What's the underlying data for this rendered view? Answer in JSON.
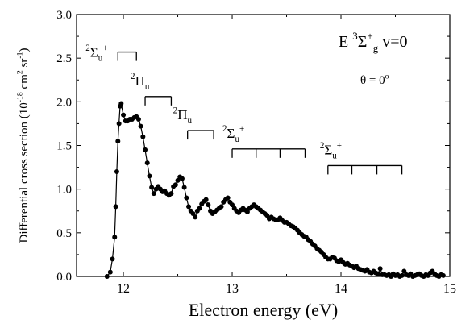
{
  "chart_data": {
    "type": "scatter",
    "x_label": "Electron energy (eV)",
    "y_label": [
      {
        "text": "Differential cross section (10",
        "pos": "base"
      },
      {
        "text": "-18",
        "pos": "sup"
      },
      {
        "text": " cm",
        "pos": "base"
      },
      {
        "text": "2",
        "pos": "sup"
      },
      {
        "text": " sr",
        "pos": "base"
      },
      {
        "text": "-1",
        "pos": "sup"
      },
      {
        "text": ")",
        "pos": "base"
      }
    ],
    "annotations": [
      [
        {
          "text": "E ",
          "pos": "base"
        },
        {
          "text": "3",
          "pos": "sup"
        },
        {
          "text": "Σ",
          "pos": "base"
        },
        {
          "text": "+",
          "pos": "sup"
        },
        {
          "text": "g",
          "pos": "sub"
        },
        {
          "text": "  v=0",
          "pos": "base"
        }
      ],
      [
        {
          "text": "θ = 0",
          "pos": "base"
        },
        {
          "text": "o",
          "pos": "sup"
        }
      ]
    ],
    "progressions": [
      {
        "label": [
          {
            "text": "2",
            "pos": "sup"
          },
          {
            "text": "Σ",
            "pos": "base"
          },
          {
            "text": "u",
            "pos": "sub"
          },
          {
            "text": "+",
            "pos": "sup"
          }
        ],
        "x": [
          11.95,
          12.12
        ],
        "y": 2.57
      },
      {
        "label": [
          {
            "text": "2",
            "pos": "sup"
          },
          {
            "text": "Π",
            "pos": "base"
          },
          {
            "text": "u",
            "pos": "sub"
          }
        ],
        "x": [
          12.2,
          12.44
        ],
        "y": 2.06
      },
      {
        "label": [
          {
            "text": "2",
            "pos": "sup"
          },
          {
            "text": "Π",
            "pos": "base"
          },
          {
            "text": "u",
            "pos": "sub"
          }
        ],
        "x": [
          12.59,
          12.83
        ],
        "y": 1.67
      },
      {
        "label": [
          {
            "text": "2",
            "pos": "sup"
          },
          {
            "text": "Σ",
            "pos": "base"
          },
          {
            "text": "u",
            "pos": "sub"
          },
          {
            "text": "+",
            "pos": "sup"
          }
        ],
        "x": [
          13.0,
          13.22,
          13.44,
          13.67
        ],
        "y": 1.46
      },
      {
        "label": [
          {
            "text": "2",
            "pos": "sup"
          },
          {
            "text": "Σ",
            "pos": "base"
          },
          {
            "text": "u",
            "pos": "sub"
          },
          {
            "text": "+",
            "pos": "sup"
          }
        ],
        "x": [
          13.88,
          14.1,
          14.33,
          14.56
        ],
        "y": 1.27
      }
    ],
    "color": "#000000",
    "line": true,
    "x": [
      11.85,
      11.88,
      11.9,
      11.92,
      11.93,
      11.94,
      11.95,
      11.96,
      11.97,
      11.98,
      12.0,
      12.02,
      12.04,
      12.06,
      12.08,
      12.1,
      12.12,
      12.14,
      12.16,
      12.18,
      12.2,
      12.22,
      12.24,
      12.26,
      12.28,
      12.3,
      12.32,
      12.34,
      12.36,
      12.38,
      12.4,
      12.42,
      12.44,
      12.46,
      12.48,
      12.5,
      12.52,
      12.54,
      12.56,
      12.58,
      12.6,
      12.62,
      12.64,
      12.66,
      12.68,
      12.7,
      12.72,
      12.74,
      12.76,
      12.78,
      12.8,
      12.82,
      12.84,
      12.86,
      12.88,
      12.9,
      12.92,
      12.94,
      12.96,
      12.98,
      13.0,
      13.02,
      13.04,
      13.06,
      13.08,
      13.1,
      13.12,
      13.14,
      13.16,
      13.18,
      13.2,
      13.22,
      13.24,
      13.26,
      13.28,
      13.3,
      13.32,
      13.34,
      13.36,
      13.38,
      13.4,
      13.42,
      13.44,
      13.46,
      13.48,
      13.5,
      13.52,
      13.54,
      13.56,
      13.58,
      13.6,
      13.62,
      13.64,
      13.66,
      13.68,
      13.7,
      13.72,
      13.74,
      13.76,
      13.78,
      13.8,
      13.82,
      13.84,
      13.86,
      13.88,
      13.9,
      13.92,
      13.94,
      13.96,
      13.98,
      14.0,
      14.02,
      14.04,
      14.06,
      14.08,
      14.1,
      14.12,
      14.14,
      14.16,
      14.18,
      14.2,
      14.22,
      14.24,
      14.26,
      14.28,
      14.3,
      14.32,
      14.34,
      14.36,
      14.38,
      14.4,
      14.42,
      14.44,
      14.46,
      14.48,
      14.5,
      14.52,
      14.54,
      14.56,
      14.58,
      14.6,
      14.62,
      14.64,
      14.66,
      14.68,
      14.7,
      14.72,
      14.74,
      14.76,
      14.78,
      14.8,
      14.82,
      14.84,
      14.86,
      14.88,
      14.9,
      14.92,
      14.94
    ],
    "values": [
      0,
      0.05,
      0.2,
      0.45,
      0.8,
      1.2,
      1.55,
      1.75,
      1.95,
      1.98,
      1.85,
      1.78,
      1.78,
      1.8,
      1.8,
      1.82,
      1.83,
      1.8,
      1.72,
      1.6,
      1.45,
      1.3,
      1.15,
      1.02,
      0.95,
      1.0,
      1.03,
      1.0,
      0.97,
      0.98,
      0.95,
      0.93,
      0.95,
      1.03,
      1.05,
      1.1,
      1.14,
      1.12,
      1.02,
      0.9,
      0.8,
      0.75,
      0.72,
      0.68,
      0.75,
      0.78,
      0.83,
      0.86,
      0.88,
      0.82,
      0.75,
      0.72,
      0.74,
      0.76,
      0.78,
      0.8,
      0.85,
      0.88,
      0.9,
      0.85,
      0.82,
      0.78,
      0.75,
      0.73,
      0.76,
      0.78,
      0.76,
      0.74,
      0.78,
      0.8,
      0.82,
      0.8,
      0.78,
      0.76,
      0.74,
      0.72,
      0.7,
      0.66,
      0.68,
      0.66,
      0.65,
      0.65,
      0.67,
      0.64,
      0.62,
      0.62,
      0.6,
      0.58,
      0.57,
      0.55,
      0.53,
      0.5,
      0.48,
      0.46,
      0.45,
      0.42,
      0.4,
      0.37,
      0.35,
      0.32,
      0.3,
      0.28,
      0.25,
      0.22,
      0.2,
      0.2,
      0.22,
      0.21,
      0.18,
      0.17,
      0.19,
      0.16,
      0.14,
      0.15,
      0.13,
      0.12,
      0.1,
      0.12,
      0.09,
      0.08,
      0.07,
      0.06,
      0.08,
      0.05,
      0.04,
      0.06,
      0.04,
      0.03,
      0.09,
      0.02,
      0.02,
      0.01,
      0.02,
      0.0,
      0.03,
      0.01,
      0.02,
      0.0,
      0.01,
      0.06,
      0.02,
      0.01,
      0.03,
      0.0,
      0.01,
      0.02,
      0.03,
      0.01,
      0.0,
      0.02,
      0.01,
      0.04,
      0.06,
      0.03,
      0.01,
      0.0,
      0.02,
      0.01
    ],
    "xlim": [
      11.57,
      15
    ],
    "ylim": [
      0,
      3
    ],
    "xticks": [
      12,
      13,
      14,
      15
    ],
    "xminor": [
      12.5,
      13.5,
      14.5
    ],
    "yticks": [
      {
        "value": 0,
        "label": "0.0"
      },
      {
        "value": 0.5,
        "label": "0.5"
      },
      {
        "value": 1,
        "label": "1.0"
      },
      {
        "value": 1.5,
        "label": "1.5"
      },
      {
        "value": 2,
        "label": "2.0"
      },
      {
        "value": 2.5,
        "label": "2.5"
      },
      {
        "value": 3,
        "label": "3.0"
      }
    ],
    "yminor": [
      0.25,
      0.75,
      1.25,
      1.75,
      2.25,
      2.75
    ]
  }
}
